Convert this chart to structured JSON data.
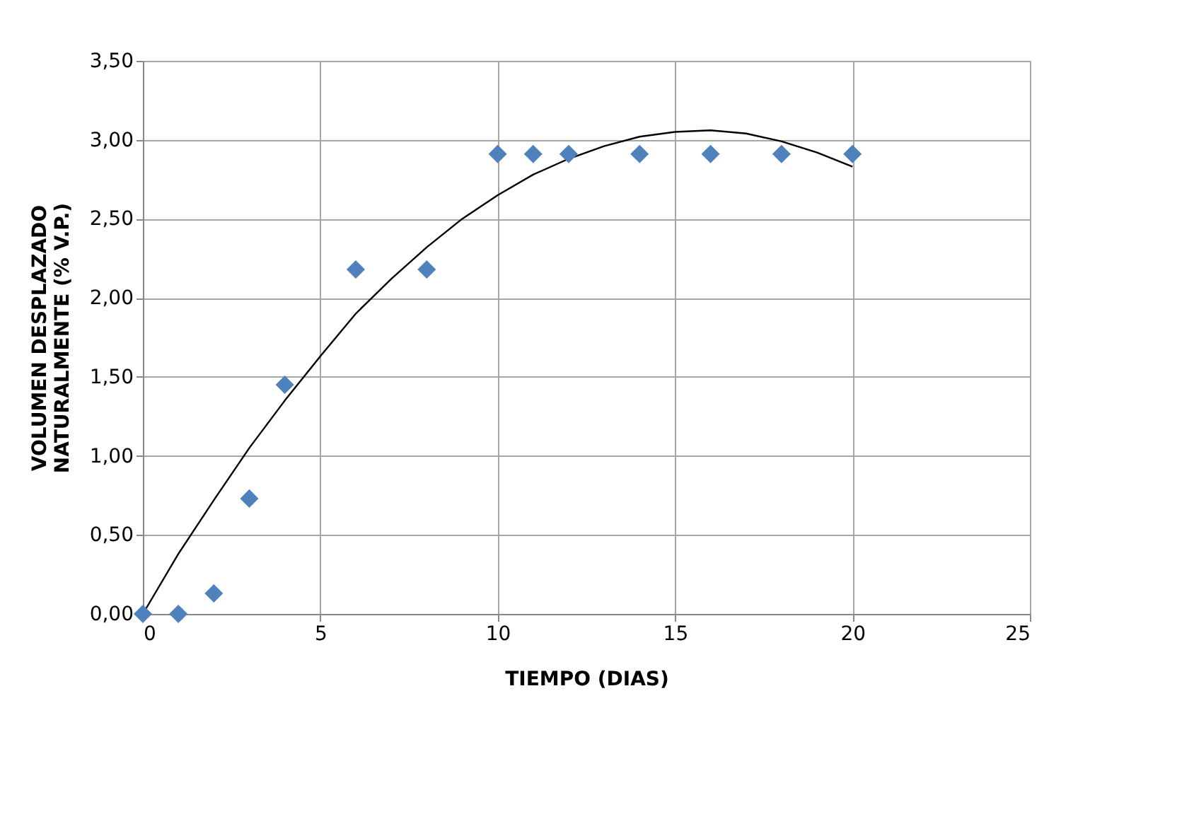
{
  "chart_data": {
    "type": "scatter",
    "xlabel": "TIEMPO (DIAS)",
    "ylabel": "VOLUMEN DESPLAZADO\nNATURALMENTE (% V.P.)",
    "xlim": [
      0,
      25
    ],
    "xticks": [
      0,
      5,
      10,
      15,
      20,
      25
    ],
    "ylim": [
      0,
      3.5
    ],
    "yticks": [
      {
        "value": 0,
        "label": "0,00"
      },
      {
        "value": 0.5,
        "label": "0,50"
      },
      {
        "value": 1,
        "label": "1,00"
      },
      {
        "value": 1.5,
        "label": "1,50"
      },
      {
        "value": 2,
        "label": "2,00"
      },
      {
        "value": 2.5,
        "label": "2,50"
      },
      {
        "value": 3,
        "label": "3,00"
      },
      {
        "value": 3.5,
        "label": "3,50"
      }
    ],
    "grid": true,
    "series": [
      {
        "type": "line",
        "color": "#000000",
        "marker": "none",
        "line_style": "solid",
        "x": [
          0,
          1,
          2,
          3,
          4,
          5,
          6,
          7,
          8,
          9,
          10,
          11,
          12,
          13,
          14,
          15,
          16,
          17,
          18,
          19,
          20
        ],
        "values": [
          0,
          0.38,
          0.72,
          1.05,
          1.35,
          1.63,
          1.9,
          2.12,
          2.32,
          2.5,
          2.65,
          2.78,
          2.88,
          2.96,
          3.02,
          3.05,
          3.06,
          3.04,
          2.99,
          2.92,
          2.83
        ]
      },
      {
        "type": "scatter",
        "color": "#4f81bd",
        "marker": "diamond",
        "x": [
          0,
          1,
          2,
          3,
          4,
          6,
          8,
          10,
          11,
          12,
          14,
          16,
          18,
          20
        ],
        "values": [
          0,
          0,
          0.13,
          0.73,
          1.45,
          2.18,
          2.18,
          2.91,
          2.91,
          2.91,
          2.91,
          2.91,
          2.91,
          2.91
        ]
      }
    ]
  }
}
